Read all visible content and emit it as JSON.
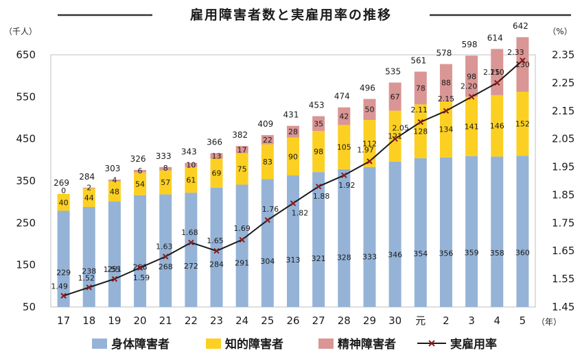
{
  "chart_data": {
    "type": "bar",
    "stacked": true,
    "title": "雇用障害者数と実雇用率の推移",
    "left_axis_unit": "（千人）",
    "right_axis_unit": "（%）",
    "x_unit": "（年）",
    "categories": [
      "17",
      "18",
      "19",
      "20",
      "21",
      "22",
      "23",
      "24",
      "25",
      "26",
      "27",
      "28",
      "29",
      "30",
      "元",
      "2",
      "3",
      "4",
      "5"
    ],
    "ylim": [
      50,
      650
    ],
    "yticks": [
      "50",
      "150",
      "250",
      "350",
      "450",
      "550",
      "650"
    ],
    "y2lim": [
      1.45,
      2.35
    ],
    "y2ticks": [
      "1.45",
      "1.55",
      "1.65",
      "1.75",
      "1.85",
      "1.95",
      "2.05",
      "2.15",
      "2.25",
      "2.35"
    ],
    "series": [
      {
        "name": "身体障害者",
        "color": "#95b3d7",
        "values": [
          229,
          238,
          251,
          266,
          268,
          272,
          284,
          291,
          304,
          313,
          321,
          328,
          333,
          346,
          354,
          356,
          359,
          358,
          360
        ],
        "labels": [
          "229",
          "238",
          "251",
          "266",
          "268",
          "272",
          "284",
          "291",
          "304",
          "313",
          "321",
          "328",
          "333",
          "346",
          "354",
          "356",
          "359",
          "358",
          "360"
        ]
      },
      {
        "name": "知的障害者",
        "color": "#fcd022",
        "values": [
          40,
          44,
          48,
          54,
          57,
          61,
          69,
          75,
          83,
          90,
          98,
          105,
          112,
          121,
          128,
          134,
          141,
          146,
          152
        ],
        "labels": [
          "40",
          "44",
          "48",
          "54",
          "57",
          "61",
          "69",
          "75",
          "83",
          "90",
          "98",
          "105",
          "112",
          "121",
          "128",
          "134",
          "141",
          "146",
          "152"
        ]
      },
      {
        "name": "精神障害者",
        "color": "#d99694",
        "values": [
          0,
          2,
          4,
          6,
          8,
          10,
          13,
          17,
          22,
          28,
          35,
          42,
          50,
          67,
          78,
          88,
          98,
          110,
          130
        ],
        "labels": [
          "0",
          "2",
          "4",
          "6",
          "8",
          "10",
          "13",
          "17",
          "22",
          "28",
          "35",
          "42",
          "50",
          "67",
          "78",
          "88",
          "98",
          "110",
          "130"
        ]
      }
    ],
    "totals": [
      "269",
      "284",
      "303",
      "326",
      "333",
      "343",
      "366",
      "382",
      "409",
      "431",
      "453",
      "474",
      "496",
      "535",
      "561",
      "578",
      "598",
      "614",
      "642"
    ],
    "line_series": {
      "name": "実雇用率",
      "color": "#1a1a1a",
      "marker_color": "#8b1a1a",
      "values": [
        1.49,
        1.52,
        1.55,
        1.59,
        1.63,
        1.68,
        1.65,
        1.69,
        1.76,
        1.82,
        1.88,
        1.92,
        1.97,
        2.05,
        2.11,
        2.15,
        2.2,
        2.25,
        2.33
      ],
      "labels": [
        "1.49",
        "1.52",
        "1.55",
        "1.59",
        "1.63",
        "1.68",
        "1.65",
        "1.69",
        "1.76",
        "1.82",
        "1.88",
        "1.92",
        "1.97",
        "2.05",
        "2.11",
        "2.15",
        "2.20",
        "2.25",
        "2.33"
      ]
    }
  }
}
